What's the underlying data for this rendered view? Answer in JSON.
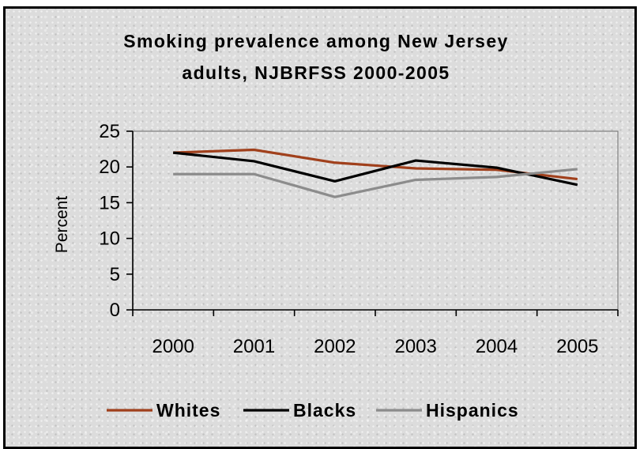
{
  "chart_data": {
    "type": "line",
    "title_lines": [
      "Smoking prevalence among New Jersey",
      "adults, NJBRFSS 2000-2005"
    ],
    "xlabel": "",
    "ylabel": "Percent",
    "categories": [
      "2000",
      "2001",
      "2002",
      "2003",
      "2004",
      "2005"
    ],
    "ylim": [
      0,
      25
    ],
    "yticks": [
      0,
      5,
      10,
      15,
      20,
      25
    ],
    "grid": false,
    "legend_position": "bottom",
    "series": [
      {
        "name": "Whites",
        "color": "#a0401c",
        "values": [
          22.0,
          22.4,
          20.6,
          19.8,
          19.6,
          18.3
        ]
      },
      {
        "name": "Blacks",
        "color": "#000000",
        "values": [
          22.0,
          20.8,
          18.0,
          20.9,
          19.9,
          17.5
        ]
      },
      {
        "name": "Hispanics",
        "color": "#8c8c8c",
        "values": [
          19.0,
          19.0,
          15.8,
          18.2,
          18.6,
          19.7
        ]
      }
    ]
  }
}
